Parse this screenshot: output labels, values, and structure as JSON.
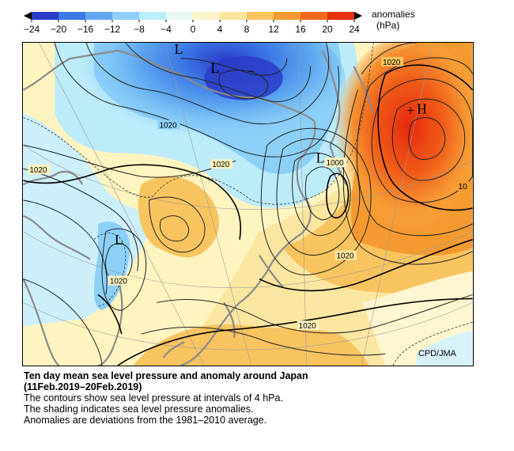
{
  "colorbar": {
    "ticks": [
      "−24",
      "−20",
      "−16",
      "−12",
      "−8",
      "−4",
      "0",
      "4",
      "8",
      "12",
      "16",
      "20",
      "24"
    ],
    "colors": [
      "#2a3cc8",
      "#3c78e6",
      "#5fa8f0",
      "#8cd0f8",
      "#bceffc",
      "#e8f8f4",
      "#fcf5cc",
      "#fae6a0",
      "#f8c460",
      "#f59a30",
      "#f26a1e",
      "#e6300f"
    ],
    "label_line1": "anomalies",
    "label_line2": "(hPa)"
  },
  "map": {
    "contour_labels": [
      "1020",
      "1020",
      "1020",
      "1000",
      "1020",
      "1020",
      "1020",
      "10"
    ],
    "centers": [
      "L",
      "L",
      "L",
      "L",
      "H"
    ],
    "minus_mark": "−",
    "plus_mark": "+",
    "credit": "CPD/JMA",
    "colors": {
      "sea_blue": "#8cd8f8",
      "deep_blue": "#2a3cc8",
      "yellow": "#fdf4c0",
      "orange": "#f8b04a",
      "red": "#e8300f",
      "coast": "#8a8a8a"
    }
  },
  "caption": {
    "title_line1": "Ten day mean sea level pressure and anomaly around Japan",
    "title_line2": "(11Feb.2019–20Feb.2019)",
    "line3": "The contours show sea level pressure at intervals of 4 hPa.",
    "line4": "The shading indicates sea level pressure anomalies.",
    "line5": "Anomalies are deviations from the 1981–2010 average."
  }
}
